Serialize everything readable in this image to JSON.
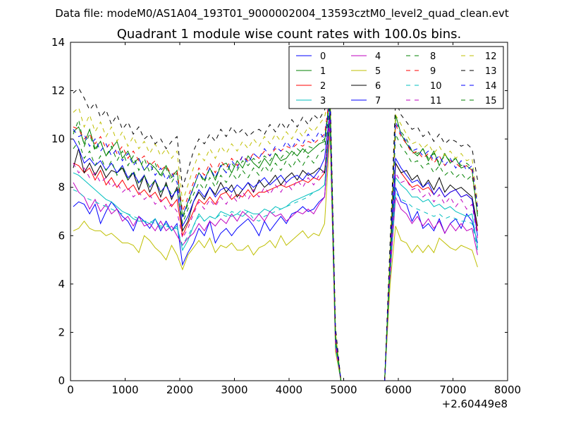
{
  "header": {
    "data_file": "Data file: modeM0/AS1A04_193T01_9000002004_13593cztM0_level2_quad_clean.evt"
  },
  "chart_data": {
    "type": "line",
    "title": "Quadrant 1 module wise count rates with 100.0s bins.",
    "xlabel": "",
    "ylabel": "",
    "xlim": [
      0,
      8000
    ],
    "ylim": [
      0,
      14
    ],
    "x_offset_label": "+2.60449e8",
    "x_ticks": [
      0,
      1000,
      2000,
      3000,
      4000,
      5000,
      6000,
      7000,
      8000
    ],
    "y_ticks": [
      0,
      2,
      4,
      6,
      8,
      10,
      12,
      14
    ],
    "grid": false,
    "legend_position": "top-right",
    "x": [
      50,
      150,
      250,
      350,
      450,
      550,
      650,
      750,
      850,
      950,
      1050,
      1150,
      1250,
      1350,
      1450,
      1550,
      1650,
      1750,
      1850,
      1950,
      2050,
      2150,
      2250,
      2350,
      2450,
      2550,
      2650,
      2750,
      2850,
      2950,
      3050,
      3150,
      3250,
      3350,
      3450,
      3550,
      3650,
      3750,
      3850,
      3950,
      4050,
      4150,
      4250,
      4350,
      4450,
      4550,
      4650,
      4750,
      4850,
      4950,
      5750,
      5850,
      5950,
      6050,
      6150,
      6250,
      6350,
      6450,
      6550,
      6650,
      6750,
      6850,
      6950,
      7050,
      7150,
      7250,
      7350,
      7450
    ],
    "series": [
      {
        "name": "0",
        "color": "#0000ff",
        "dash": false,
        "values": [
          7.2,
          7.4,
          7.3,
          6.9,
          7.3,
          6.5,
          7.0,
          7.4,
          7.1,
          6.8,
          6.6,
          6.2,
          6.8,
          6.6,
          6.3,
          6.7,
          6.2,
          6.6,
          6.2,
          6.5,
          4.8,
          5.3,
          5.7,
          6.3,
          6.0,
          6.6,
          5.7,
          6.1,
          6.3,
          6.0,
          6.3,
          6.5,
          6.7,
          6.4,
          6.0,
          6.6,
          6.2,
          6.5,
          6.8,
          6.5,
          6.9,
          7.0,
          7.2,
          7.0,
          7.1,
          7.4,
          7.6,
          10.5,
          1.3,
          0.0,
          0.0,
          4.3,
          8.0,
          7.4,
          7.3,
          6.6,
          7.0,
          6.3,
          6.5,
          6.2,
          6.7,
          6.1,
          6.5,
          6.7,
          6.3,
          6.9,
          6.6,
          5.7
        ]
      },
      {
        "name": "1",
        "color": "#008000",
        "dash": false,
        "values": [
          10.3,
          10.5,
          9.8,
          10.4,
          9.6,
          9.9,
          9.3,
          9.6,
          9.9,
          9.2,
          9.5,
          9.0,
          9.2,
          8.7,
          9.0,
          8.8,
          8.5,
          8.9,
          8.4,
          8.7,
          6.8,
          7.4,
          8.0,
          8.6,
          8.3,
          8.8,
          8.3,
          8.9,
          9.0,
          8.6,
          9.1,
          8.8,
          9.3,
          9.0,
          8.8,
          9.2,
          8.9,
          9.4,
          9.1,
          9.2,
          9.5,
          9.3,
          9.6,
          9.4,
          9.6,
          9.8,
          9.9,
          11.6,
          1.8,
          0.0,
          0.0,
          5.0,
          11.0,
          10.2,
          9.8,
          9.5,
          9.3,
          9.6,
          9.1,
          9.5,
          8.9,
          9.4,
          9.0,
          9.2,
          8.8,
          8.9,
          8.7,
          6.8
        ]
      },
      {
        "name": "2",
        "color": "#ff0000",
        "dash": false,
        "values": [
          9.0,
          8.9,
          8.6,
          8.8,
          8.3,
          8.7,
          8.1,
          8.4,
          8.0,
          8.3,
          7.9,
          8.1,
          7.7,
          7.9,
          7.6,
          7.8,
          7.4,
          7.6,
          7.2,
          7.5,
          6.0,
          6.5,
          7.0,
          7.5,
          7.3,
          7.6,
          7.3,
          7.7,
          7.8,
          7.5,
          7.7,
          7.6,
          7.9,
          7.6,
          7.8,
          7.8,
          7.9,
          8.0,
          8.1,
          8.0,
          8.1,
          8.2,
          8.3,
          8.2,
          8.4,
          8.3,
          8.6,
          11.0,
          1.6,
          0.0,
          0.0,
          4.8,
          9.0,
          8.6,
          8.3,
          8.0,
          8.1,
          7.9,
          8.0,
          7.7,
          8.0,
          7.6,
          7.8,
          7.9,
          7.6,
          7.7,
          7.5,
          6.2
        ]
      },
      {
        "name": "3",
        "color": "#00bfbf",
        "dash": false,
        "values": [
          8.6,
          8.5,
          8.3,
          8.1,
          7.9,
          7.7,
          7.5,
          7.4,
          7.2,
          7.0,
          6.9,
          6.7,
          6.6,
          6.6,
          6.5,
          6.7,
          6.3,
          6.5,
          6.2,
          6.4,
          5.4,
          5.8,
          6.4,
          6.9,
          6.6,
          6.8,
          6.7,
          7.0,
          6.9,
          6.8,
          6.9,
          6.8,
          7.0,
          6.9,
          6.9,
          7.1,
          7.0,
          7.2,
          7.1,
          7.2,
          7.4,
          7.5,
          7.6,
          7.7,
          7.8,
          7.9,
          8.1,
          10.8,
          1.4,
          0.0,
          0.0,
          4.4,
          8.4,
          8.1,
          7.9,
          7.6,
          7.6,
          7.4,
          7.5,
          7.2,
          7.3,
          7.1,
          7.2,
          7.0,
          6.9,
          6.8,
          6.9,
          5.5
        ]
      },
      {
        "name": "4",
        "color": "#bf00bf",
        "dash": false,
        "values": [
          8.2,
          7.8,
          7.6,
          7.1,
          7.5,
          7.0,
          7.3,
          6.9,
          7.1,
          6.6,
          6.8,
          6.4,
          6.8,
          6.4,
          6.5,
          6.2,
          6.6,
          6.2,
          6.4,
          6.0,
          5.6,
          5.9,
          6.1,
          6.5,
          6.2,
          6.6,
          6.4,
          6.7,
          6.5,
          6.9,
          6.6,
          7.0,
          6.8,
          6.6,
          6.9,
          6.6,
          7.0,
          6.8,
          6.9,
          6.6,
          6.8,
          7.0,
          6.9,
          7.1,
          6.9,
          7.3,
          7.6,
          10.6,
          1.4,
          0.0,
          0.0,
          4.4,
          7.6,
          7.1,
          6.9,
          6.5,
          6.8,
          6.4,
          6.7,
          6.3,
          6.6,
          6.1,
          6.5,
          6.2,
          6.5,
          6.2,
          6.3,
          5.2
        ]
      },
      {
        "name": "5",
        "color": "#bfbf00",
        "dash": false,
        "values": [
          6.2,
          6.3,
          6.6,
          6.3,
          6.2,
          6.2,
          6.0,
          6.1,
          5.9,
          5.7,
          5.7,
          5.6,
          5.3,
          6.0,
          5.8,
          5.5,
          5.3,
          5.0,
          5.6,
          5.2,
          4.6,
          5.2,
          5.5,
          5.8,
          5.5,
          5.9,
          5.3,
          5.6,
          5.5,
          5.7,
          5.4,
          5.4,
          5.6,
          5.2,
          5.5,
          5.6,
          5.8,
          5.5,
          6.0,
          5.6,
          5.8,
          6.0,
          6.2,
          5.9,
          6.1,
          6.0,
          6.5,
          10.3,
          1.2,
          0.0,
          0.0,
          4.0,
          6.4,
          5.8,
          5.7,
          5.3,
          5.6,
          5.3,
          5.6,
          5.3,
          5.9,
          5.7,
          5.5,
          5.4,
          5.6,
          5.5,
          5.4,
          4.7
        ]
      },
      {
        "name": "6",
        "color": "#000000",
        "dash": false,
        "values": [
          8.8,
          9.6,
          8.6,
          9.0,
          8.5,
          8.9,
          8.4,
          8.7,
          8.6,
          8.8,
          8.3,
          8.6,
          7.9,
          8.5,
          7.8,
          8.3,
          7.6,
          8.2,
          7.5,
          8.0,
          6.2,
          6.6,
          7.4,
          7.8,
          7.5,
          8.0,
          7.7,
          8.2,
          7.8,
          8.1,
          7.6,
          7.9,
          8.2,
          7.8,
          8.3,
          8.0,
          8.2,
          8.5,
          8.1,
          8.4,
          8.6,
          8.3,
          8.7,
          8.5,
          8.6,
          8.8,
          8.6,
          10.9,
          1.7,
          0.0,
          0.0,
          4.9,
          9.0,
          8.6,
          8.7,
          8.3,
          8.5,
          8.0,
          8.3,
          7.9,
          8.4,
          7.8,
          8.1,
          7.9,
          8.0,
          7.8,
          7.6,
          6.4
        ]
      },
      {
        "name": "7",
        "color": "#0000ff",
        "dash": false,
        "values": [
          10.0,
          9.6,
          9.0,
          9.2,
          8.9,
          9.1,
          8.7,
          9.0,
          8.6,
          8.9,
          8.4,
          8.6,
          8.2,
          8.5,
          8.0,
          8.3,
          7.8,
          8.1,
          7.6,
          7.9,
          6.4,
          6.8,
          7.4,
          7.9,
          7.6,
          8.0,
          7.6,
          7.9,
          8.0,
          7.8,
          8.1,
          7.9,
          8.2,
          8.0,
          8.2,
          8.4,
          8.1,
          8.3,
          8.5,
          8.2,
          8.4,
          8.5,
          8.3,
          8.6,
          8.4,
          8.7,
          9.2,
          11.2,
          1.7,
          0.0,
          0.0,
          4.9,
          9.2,
          8.8,
          8.5,
          8.2,
          8.3,
          8.0,
          8.2,
          7.7,
          8.0,
          7.6,
          7.8,
          7.9,
          7.6,
          7.7,
          7.5,
          6.0
        ]
      },
      {
        "name": "8",
        "color": "#008000",
        "dash": true,
        "values": [
          10.2,
          10.8,
          9.7,
          10.2,
          9.5,
          9.9,
          9.3,
          9.7,
          9.1,
          9.5,
          8.9,
          9.3,
          8.7,
          9.2,
          8.6,
          9.0,
          8.4,
          8.8,
          8.2,
          8.6,
          6.7,
          7.3,
          8.0,
          8.6,
          8.2,
          8.8,
          8.4,
          8.9,
          8.6,
          9.0,
          8.7,
          9.1,
          8.9,
          9.2,
          9.0,
          9.3,
          9.1,
          9.4,
          9.2,
          9.5,
          9.3,
          9.6,
          9.4,
          9.7,
          9.6,
          9.8,
          10.0,
          11.8,
          1.8,
          0.0,
          0.0,
          5.1,
          10.8,
          10.3,
          10.0,
          9.5,
          9.4,
          9.6,
          9.2,
          9.4,
          9.0,
          9.3,
          9.1,
          9.2,
          8.9,
          9.0,
          8.8,
          7.1
        ]
      },
      {
        "name": "9",
        "color": "#ff0000",
        "dash": true,
        "values": [
          10.5,
          10.4,
          10.0,
          10.2,
          9.8,
          10.1,
          9.6,
          9.9,
          9.4,
          9.7,
          9.2,
          9.5,
          9.1,
          9.3,
          8.9,
          9.1,
          8.7,
          8.9,
          8.5,
          8.7,
          7.0,
          7.6,
          8.2,
          8.8,
          8.5,
          9.0,
          8.6,
          9.1,
          8.8,
          9.2,
          8.9,
          9.3,
          9.1,
          9.4,
          9.2,
          9.5,
          9.3,
          9.6,
          9.5,
          9.7,
          9.6,
          9.8,
          9.7,
          9.9,
          9.8,
          10.0,
          10.2,
          11.9,
          1.9,
          0.0,
          0.0,
          5.2,
          10.6,
          10.1,
          9.8,
          9.4,
          9.5,
          9.2,
          9.4,
          9.0,
          9.3,
          8.9,
          9.1,
          9.0,
          8.8,
          8.9,
          8.7,
          7.0
        ]
      },
      {
        "name": "10",
        "color": "#00bfbf",
        "dash": true,
        "values": [
          7.9,
          7.8,
          7.6,
          7.5,
          7.4,
          7.3,
          7.2,
          7.1,
          7.0,
          6.9,
          6.9,
          6.8,
          6.7,
          6.6,
          6.6,
          6.5,
          6.4,
          6.4,
          6.3,
          6.3,
          5.6,
          6.0,
          6.4,
          6.8,
          6.6,
          6.8,
          6.7,
          6.9,
          6.8,
          7.0,
          6.9,
          7.1,
          7.0,
          6.7,
          6.6,
          6.8,
          6.9,
          7.0,
          7.1,
          7.2,
          7.3,
          7.4,
          7.5,
          7.6,
          7.8,
          7.9,
          8.1,
          10.7,
          1.4,
          0.0,
          0.0,
          4.5,
          7.8,
          7.5,
          7.4,
          7.2,
          7.1,
          7.0,
          6.9,
          6.8,
          6.9,
          6.7,
          6.8,
          6.7,
          6.6,
          6.6,
          6.5,
          5.4
        ]
      },
      {
        "name": "11",
        "color": "#bf00bf",
        "dash": true,
        "values": [
          9.0,
          8.6,
          8.8,
          8.4,
          8.6,
          8.2,
          8.4,
          8.0,
          8.2,
          7.8,
          8.0,
          7.6,
          7.8,
          7.5,
          7.7,
          7.3,
          7.5,
          7.1,
          7.3,
          7.0,
          5.9,
          6.3,
          6.9,
          7.4,
          7.1,
          7.5,
          7.2,
          7.6,
          7.3,
          7.7,
          7.4,
          7.8,
          7.5,
          7.9,
          7.6,
          8.0,
          7.7,
          8.1,
          7.8,
          8.2,
          7.9,
          8.3,
          8.0,
          8.4,
          8.1,
          8.5,
          8.7,
          10.9,
          1.6,
          0.0,
          0.0,
          4.8,
          8.6,
          8.2,
          8.3,
          7.9,
          8.0,
          7.6,
          7.8,
          7.4,
          7.7,
          7.3,
          7.6,
          7.2,
          7.5,
          7.1,
          7.3,
          5.9
        ]
      },
      {
        "name": "12",
        "color": "#bfbf00",
        "dash": true,
        "values": [
          11.1,
          11.3,
          10.5,
          11.0,
          10.3,
          10.7,
          10.1,
          10.5,
          9.9,
          10.3,
          9.7,
          10.1,
          9.6,
          9.9,
          9.4,
          9.8,
          9.3,
          9.6,
          9.2,
          9.5,
          7.4,
          8.1,
          8.8,
          9.4,
          9.1,
          9.6,
          9.2,
          9.7,
          9.4,
          9.8,
          9.5,
          9.9,
          9.6,
          10.0,
          9.7,
          10.1,
          9.8,
          10.2,
          9.9,
          10.3,
          10.0,
          10.4,
          10.1,
          10.5,
          10.3,
          10.6,
          10.9,
          12.0,
          2.0,
          0.0,
          0.0,
          5.4,
          11.0,
          10.6,
          10.2,
          9.8,
          9.9,
          9.6,
          9.8,
          9.4,
          9.7,
          9.3,
          9.5,
          9.2,
          9.4,
          9.1,
          9.2,
          7.4
        ]
      },
      {
        "name": "13",
        "color": "#000000",
        "dash": true,
        "values": [
          11.9,
          12.1,
          11.7,
          11.2,
          11.5,
          10.9,
          11.2,
          10.6,
          11.0,
          10.4,
          10.7,
          10.2,
          10.5,
          10.0,
          10.2,
          9.8,
          10.0,
          9.6,
          9.9,
          10.1,
          8.0,
          8.7,
          9.5,
          10.0,
          9.8,
          10.2,
          9.9,
          10.4,
          10.1,
          10.5,
          10.2,
          10.4,
          10.1,
          10.3,
          10.4,
          10.2,
          10.6,
          10.3,
          10.7,
          10.4,
          10.8,
          10.5,
          10.9,
          10.6,
          11.0,
          10.8,
          11.2,
          12.2,
          2.2,
          0.0,
          0.0,
          5.8,
          11.6,
          11.0,
          10.7,
          10.4,
          10.5,
          10.1,
          10.3,
          9.9,
          10.2,
          9.8,
          10.0,
          9.9,
          9.7,
          9.8,
          9.6,
          8.3
        ]
      },
      {
        "name": "14",
        "color": "#0000ff",
        "dash": true,
        "values": [
          10.4,
          10.1,
          10.2,
          9.7,
          10.0,
          9.5,
          9.8,
          9.3,
          9.6,
          9.1,
          9.4,
          8.9,
          9.2,
          8.7,
          9.0,
          8.5,
          8.8,
          8.3,
          8.6,
          8.2,
          6.8,
          7.4,
          8.0,
          8.6,
          8.3,
          8.8,
          8.4,
          8.9,
          8.6,
          9.1,
          8.8,
          9.3,
          9.0,
          9.4,
          9.2,
          9.6,
          9.3,
          9.7,
          9.5,
          9.9,
          9.6,
          10.0,
          9.8,
          10.2,
          9.9,
          10.3,
          10.0,
          11.7,
          1.8,
          0.0,
          0.0,
          5.1,
          10.7,
          10.2,
          9.9,
          9.5,
          9.6,
          9.3,
          9.5,
          9.1,
          9.3,
          8.9,
          9.2,
          8.8,
          9.1,
          8.7,
          8.9,
          7.2
        ]
      },
      {
        "name": "15",
        "color": "#008000",
        "dash": true,
        "values": [
          9.6,
          9.9,
          9.2,
          9.5,
          8.9,
          9.3,
          8.7,
          9.1,
          8.5,
          8.9,
          8.3,
          8.7,
          8.1,
          8.5,
          8.0,
          8.3,
          7.8,
          8.1,
          7.7,
          7.9,
          6.5,
          7.1,
          7.7,
          8.2,
          7.9,
          8.4,
          8.0,
          8.5,
          8.2,
          8.6,
          8.3,
          8.7,
          8.4,
          8.8,
          8.5,
          8.9,
          8.6,
          9.0,
          8.7,
          9.1,
          8.8,
          9.2,
          8.9,
          9.3,
          9.0,
          9.4,
          9.6,
          11.4,
          1.7,
          0.0,
          0.0,
          5.0,
          10.2,
          9.7,
          9.4,
          9.0,
          9.1,
          8.8,
          9.0,
          8.6,
          8.9,
          8.5,
          8.7,
          8.4,
          8.6,
          8.3,
          8.5,
          6.9
        ]
      }
    ]
  }
}
